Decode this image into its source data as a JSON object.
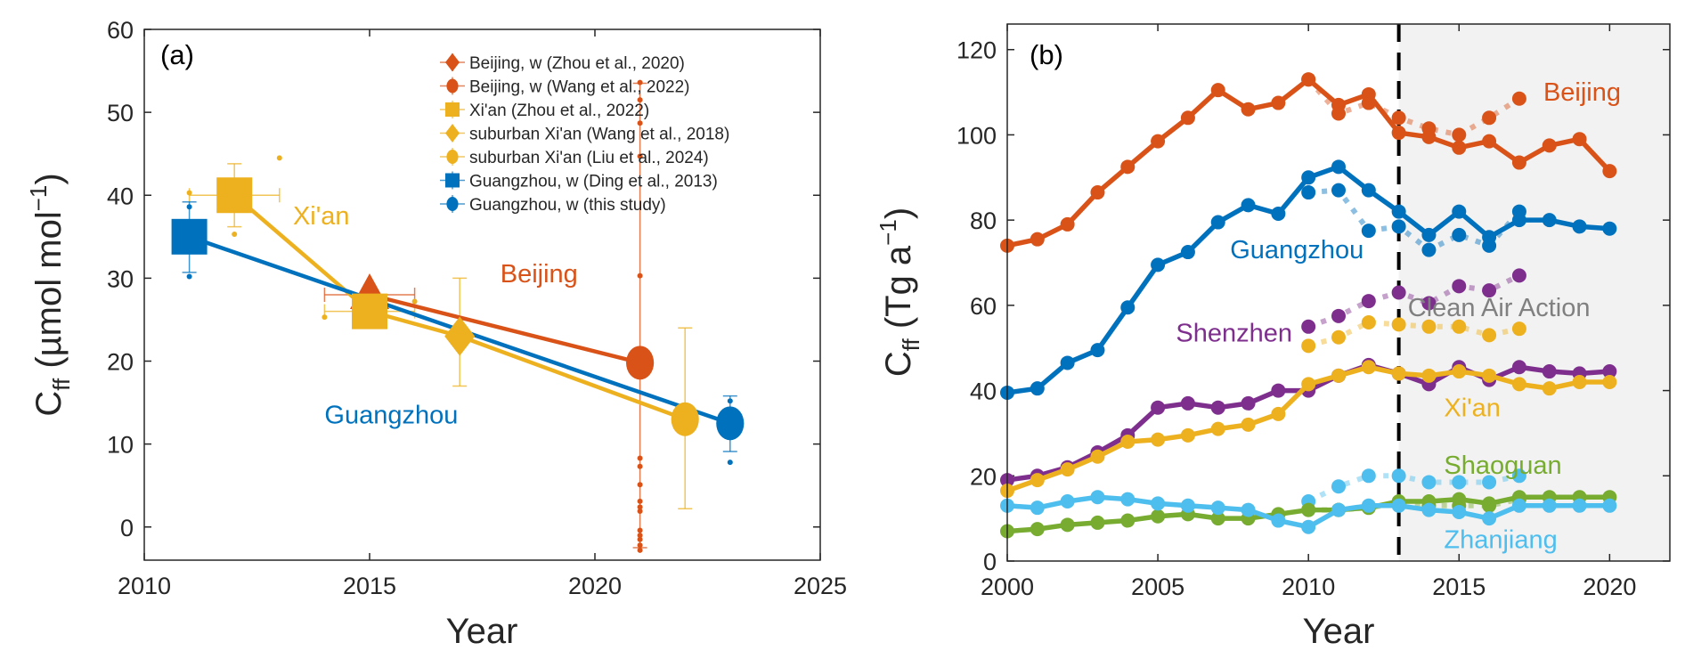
{
  "chart_data": [
    {
      "type": "scatter",
      "panel_label": "(a)",
      "xlabel": "Year",
      "ylabel": "C_ff (µmol mol^-1)",
      "ylabel_parts": {
        "main": "C",
        "sub": "ff",
        "unit_open": " (µmol mol",
        "sup": "−1",
        "unit_close": ")"
      },
      "xlim": [
        2010,
        2025
      ],
      "ylim": [
        -4,
        60
      ],
      "xticks": [
        2010,
        2015,
        2020,
        2025
      ],
      "yticks": [
        0,
        10,
        20,
        30,
        40,
        50,
        60
      ],
      "legend_position": "top-right",
      "colors": {
        "beijing": "#D95319",
        "xian": "#EDB120",
        "guangzhou": "#0072BD"
      },
      "series": [
        {
          "name": "Beijing, w (Zhou et al., 2020)",
          "color": "#D95319",
          "marker": "triangle",
          "points": [
            {
              "x": 2015,
              "y": 28,
              "xerr": [
                2014,
                2016
              ]
            }
          ],
          "legend_marker": "diamond"
        },
        {
          "name": "Beijing, w (Wang et al., 2022)",
          "color": "#D95319",
          "marker": "circle",
          "points": [
            {
              "x": 2021,
              "y": 19.8,
              "yerr": [
                -2.5,
                53.5
              ]
            }
          ],
          "raw_dots": [
            53.6,
            51.5,
            48.7,
            44.7,
            30.3,
            8.3,
            7.3,
            5.1,
            3.1,
            2.4,
            1.9,
            -0.4,
            -1.0,
            -1.5,
            -2.2,
            -2.8
          ]
        },
        {
          "name": "Xi'an (Zhou et al., 2022)",
          "color": "#EDB120",
          "marker": "square",
          "points": [
            {
              "x": 2012,
              "y": 40,
              "xerr": [
                2011,
                2013
              ],
              "yerr": [
                36.2,
                43.8
              ]
            },
            {
              "x": 2015,
              "y": 26,
              "xerr": [
                2014,
                2016
              ],
              "yerr": [
                25.6,
                27.4
              ]
            }
          ],
          "raw_dots": [
            {
              "x": 2011,
              "y": 40.3
            },
            {
              "x": 2012,
              "y": 35.3
            },
            {
              "x": 2013,
              "y": 44.5
            },
            {
              "x": 2014,
              "y": 25.3
            },
            {
              "x": 2016,
              "y": 27.2
            }
          ]
        },
        {
          "name": "suburban Xi'an (Wang et al., 2018)",
          "color": "#EDB120",
          "marker": "diamond",
          "points": [
            {
              "x": 2017,
              "y": 23,
              "yerr": [
                17,
                30
              ]
            }
          ]
        },
        {
          "name": "suburban Xi'an (Liu et al., 2024)",
          "color": "#EDB120",
          "marker": "circle",
          "points": [
            {
              "x": 2022,
              "y": 13,
              "yerr": [
                2.2,
                24
              ]
            }
          ]
        },
        {
          "name": "Guangzhou, w (Ding et al., 2013)",
          "color": "#0072BD",
          "marker": "square",
          "points": [
            {
              "x": 2011,
              "y": 35,
              "yerr": [
                30.7,
                39.2
              ]
            }
          ],
          "raw_dots": [
            {
              "x": 2011,
              "y": 38.6
            },
            {
              "x": 2011,
              "y": 30.2
            }
          ]
        },
        {
          "name": "Guangzhou, w (this study)",
          "color": "#0072BD",
          "marker": "circle",
          "points": [
            {
              "x": 2023,
              "y": 12.5,
              "yerr": [
                9.1,
                15.8
              ]
            }
          ],
          "raw_dots": [
            {
              "x": 2023,
              "y": 15.2
            },
            {
              "x": 2023,
              "y": 7.8
            }
          ]
        }
      ],
      "trend_lines": [
        {
          "name": "Xi'an",
          "color": "#EDB120",
          "x": [
            2012,
            2015,
            2017,
            2022
          ],
          "y": [
            40,
            26,
            23,
            13
          ]
        },
        {
          "name": "Beijing",
          "color": "#D95319",
          "x": [
            2015,
            2021
          ],
          "y": [
            28,
            19.8
          ]
        },
        {
          "name": "Guangzhou",
          "color": "#0072BD",
          "x": [
            2011,
            2023
          ],
          "y": [
            35,
            12.5
          ]
        }
      ],
      "annotations": [
        {
          "text": "Xi'an",
          "color": "#EDB120",
          "x": 2013.3,
          "y": 36.5
        },
        {
          "text": "Beijing",
          "color": "#D95319",
          "x": 2017.9,
          "y": 29.5
        },
        {
          "text": "Guangzhou",
          "color": "#0072BD",
          "x": 2014.0,
          "y": 12.5
        }
      ]
    },
    {
      "type": "line",
      "panel_label": "(b)",
      "xlabel": "Year",
      "ylabel": "C_ff (Tg a^-1)",
      "ylabel_parts": {
        "main": "C",
        "sub": "ff",
        "unit_open": " (Tg a",
        "sup": "−1",
        "unit_close": ")"
      },
      "xlim": [
        2000,
        2022
      ],
      "ylim": [
        0,
        126
      ],
      "xticks": [
        2000,
        2005,
        2010,
        2015,
        2020
      ],
      "yticks": [
        0,
        20,
        40,
        60,
        80,
        100,
        120
      ],
      "shaded_region": {
        "from": 2013,
        "to": 2022,
        "color": "#F2F2F2",
        "label": "Clean Air Action"
      },
      "vertical_line": {
        "x": 2013,
        "style": "dashed",
        "color": "#000000"
      },
      "x": [
        2000,
        2001,
        2002,
        2003,
        2004,
        2005,
        2006,
        2007,
        2008,
        2009,
        2010,
        2011,
        2012,
        2013,
        2014,
        2015,
        2016,
        2017,
        2018,
        2019,
        2020
      ],
      "series": [
        {
          "name": "Beijing",
          "color": "#D95319",
          "values": [
            74,
            75.5,
            79,
            86.5,
            92.5,
            98.5,
            104,
            110.5,
            106,
            107.5,
            113,
            107,
            109.5,
            100.5,
            99.5,
            97,
            98.5,
            93.5,
            97.5,
            99,
            91.5
          ]
        },
        {
          "name": "Guangzhou",
          "color": "#0072BD",
          "values": [
            39.5,
            40.5,
            46.5,
            49.5,
            59.5,
            69.5,
            72.5,
            79.5,
            83.5,
            81.5,
            90,
            92.5,
            87,
            82,
            76.5,
            82,
            76,
            80,
            80,
            78.5,
            78
          ]
        },
        {
          "name": "Shenzhen",
          "color": "#7E2F8E",
          "values": [
            19,
            20,
            22,
            25.5,
            29.5,
            36,
            37,
            36,
            37,
            40,
            40,
            43.5,
            46,
            44,
            41.5,
            45.5,
            42.5,
            45.5,
            44.5,
            44,
            44.5
          ]
        },
        {
          "name": "Xi'an",
          "color": "#EDB120",
          "values": [
            16.5,
            19,
            21.5,
            24.5,
            28,
            28.5,
            29.5,
            31,
            32,
            34.5,
            41.5,
            43.5,
            45.5,
            44,
            43.5,
            44.5,
            43.5,
            41.5,
            40.5,
            42,
            42
          ]
        },
        {
          "name": "Shaoguan",
          "color": "#77AC30",
          "values": [
            7,
            7.5,
            8.5,
            9,
            9.5,
            10.5,
            11,
            10,
            10,
            11,
            12,
            12,
            12.5,
            14,
            14,
            14.5,
            13.5,
            15,
            15,
            15,
            15
          ]
        },
        {
          "name": "Zhanjiang",
          "color": "#4DBEEE",
          "values": [
            13,
            12.5,
            14,
            15,
            14.5,
            13.5,
            13,
            12.5,
            12,
            9.5,
            8,
            12,
            13,
            13,
            12,
            11.5,
            10,
            13,
            13,
            13,
            13
          ]
        }
      ],
      "dotted_series": {
        "x": [
          2010,
          2011,
          2012,
          2013,
          2014,
          2015,
          2016,
          2017
        ],
        "series": [
          {
            "name": "Beijing (dotted)",
            "color": "#D95319",
            "values": [
              113,
              105,
              107.5,
              104,
              101.5,
              100,
              104,
              108.5
            ]
          },
          {
            "name": "Guangzhou (dotted)",
            "color": "#0072BD",
            "values": [
              86.5,
              87,
              77.5,
              78.5,
              73,
              76.5,
              74,
              82
            ]
          },
          {
            "name": "Shenzhen (dotted)",
            "color": "#7E2F8E",
            "values": [
              55,
              57.5,
              61,
              63,
              60.5,
              64.5,
              63.5,
              67
            ]
          },
          {
            "name": "Xi'an (dotted)",
            "color": "#EDB120",
            "values": [
              50.5,
              52.5,
              56,
              55.5,
              55,
              55,
              53,
              54.5
            ]
          },
          {
            "name": "Shaoguan (dotted)",
            "color": "#77AC30",
            "values": [
              12,
              12,
              12.5,
              13.5,
              13,
              13,
              13,
              14.5
            ]
          },
          {
            "name": "Zhanjiang (dotted)",
            "color": "#4DBEEE",
            "values": [
              14,
              17.5,
              20,
              20,
              18.5,
              18.5,
              18.5,
              20
            ]
          }
        ]
      },
      "annotations": [
        {
          "text": "Beijing",
          "color": "#D95319",
          "x": 2017.8,
          "y": 108
        },
        {
          "text": "Guangzhou",
          "color": "#0072BD",
          "x": 2007.4,
          "y": 71
        },
        {
          "text": "Clean Air Action",
          "color": "#808080",
          "x": 2013.3,
          "y": 57.5
        },
        {
          "text": "Shenzhen",
          "color": "#7E2F8E",
          "x": 2005.6,
          "y": 51.5
        },
        {
          "text": "Xi'an",
          "color": "#EDB120",
          "x": 2014.5,
          "y": 34
        },
        {
          "text": "Shaoguan",
          "color": "#77AC30",
          "x": 2014.5,
          "y": 20.5
        },
        {
          "text": "Zhanjiang",
          "color": "#4DBEEE",
          "x": 2014.5,
          "y": 3
        }
      ]
    }
  ]
}
